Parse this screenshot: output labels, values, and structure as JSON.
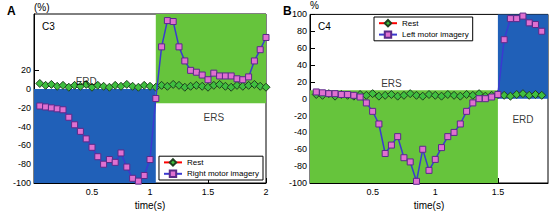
{
  "chart_data": [
    {
      "type": "line",
      "label": "A",
      "title": "C3",
      "xlabel": "time(s)",
      "ylabel": "(%)",
      "x": [
        0.05,
        0.1,
        0.15,
        0.2,
        0.25,
        0.3,
        0.35,
        0.4,
        0.45,
        0.5,
        0.55,
        0.6,
        0.65,
        0.7,
        0.75,
        0.8,
        0.85,
        0.9,
        0.95,
        1.0,
        1.05,
        1.1,
        1.15,
        1.2,
        1.25,
        1.3,
        1.35,
        1.4,
        1.45,
        1.5,
        1.55,
        1.6,
        1.65,
        1.7,
        1.75,
        1.8,
        1.85,
        1.9,
        1.95,
        2.0
      ],
      "series": [
        {
          "name": "Rest",
          "color": "#ff0000",
          "marker": "diamond",
          "values": [
            6,
            4,
            5,
            3,
            4,
            2,
            4,
            3,
            5,
            2,
            4,
            3,
            2,
            4,
            3,
            5,
            3,
            2,
            4,
            3,
            2,
            4,
            3,
            5,
            4,
            2,
            3,
            4,
            3,
            2,
            4,
            5,
            3,
            2,
            4,
            3,
            4,
            5,
            3,
            2
          ]
        },
        {
          "name": "Right motor imagery",
          "color": "#3a3ad0",
          "marker": "square",
          "values": [
            -18,
            -19,
            -20,
            -21,
            -22,
            -30,
            -38,
            -45,
            -53,
            -62,
            -72,
            -80,
            -75,
            -78,
            -68,
            -83,
            -95,
            -98,
            -92,
            -75,
            -10,
            45,
            73,
            72,
            45,
            30,
            20,
            18,
            15,
            10,
            17,
            14,
            14,
            14,
            11,
            10,
            13,
            30,
            42,
            55
          ]
        }
      ],
      "xlim": [
        0,
        2
      ],
      "xticks": [
        0.5,
        1,
        1.5,
        2
      ],
      "ylim": [
        -100,
        80
      ],
      "yticks": [
        -100,
        -80,
        -60,
        -40,
        -20,
        0,
        20
      ],
      "grid": false,
      "legend": "lower right",
      "regions": [
        {
          "x": [
            0,
            1.05
          ],
          "y": [
            -100,
            0
          ],
          "color": "#2060b8"
        },
        {
          "x": [
            1.05,
            2
          ],
          "y": [
            -15,
            80
          ],
          "color": "#66c43c"
        }
      ],
      "annotations": [
        {
          "text": "ERD",
          "x": 0.45,
          "y": 8
        },
        {
          "text": "ERS",
          "x": 1.55,
          "y": -30
        }
      ]
    },
    {
      "type": "line",
      "label": "B",
      "title": "C4",
      "xlabel": "time(s)",
      "ylabel": "%",
      "x": [
        0.05,
        0.1,
        0.15,
        0.2,
        0.25,
        0.3,
        0.35,
        0.4,
        0.45,
        0.5,
        0.55,
        0.6,
        0.65,
        0.7,
        0.75,
        0.8,
        0.85,
        0.9,
        0.95,
        1.0,
        1.05,
        1.1,
        1.15,
        1.2,
        1.25,
        1.3,
        1.35,
        1.4,
        1.45,
        1.5,
        1.55,
        1.6,
        1.65,
        1.7,
        1.75,
        1.8,
        1.85
      ],
      "series": [
        {
          "name": "Rest",
          "color": "#ff0000",
          "marker": "diamond",
          "values": [
            5,
            4,
            6,
            3,
            5,
            4,
            3,
            5,
            4,
            6,
            3,
            4,
            5,
            3,
            4,
            6,
            4,
            3,
            5,
            4,
            3,
            5,
            4,
            3,
            5,
            4,
            6,
            3,
            4,
            5,
            4,
            3,
            5,
            6,
            4,
            5,
            4
          ]
        },
        {
          "name": "Left motor imagery",
          "color": "#3a3ad0",
          "marker": "square",
          "values": [
            8,
            7,
            6,
            6,
            5,
            5,
            4,
            2,
            -5,
            -15,
            -30,
            -65,
            -55,
            -45,
            -70,
            -75,
            -98,
            -60,
            -85,
            -72,
            -58,
            -45,
            -40,
            -30,
            -15,
            -5,
            0,
            0,
            2,
            5,
            70,
            95,
            95,
            98,
            90,
            88,
            80
          ]
        }
      ],
      "xlim": [
        0,
        1.9
      ],
      "xticks": [
        0.5,
        1,
        1.5
      ],
      "ylim": [
        -100,
        100
      ],
      "yticks": [
        -100,
        -80,
        -60,
        -40,
        -20,
        0,
        20,
        40,
        60,
        80,
        100
      ],
      "grid": false,
      "legend": "upper center",
      "regions": [
        {
          "x": [
            0,
            1.5
          ],
          "y": [
            -100,
            10
          ],
          "color": "#66c43c"
        },
        {
          "x": [
            1.5,
            1.9
          ],
          "y": [
            0,
            100
          ],
          "color": "#2060b8"
        }
      ],
      "annotations": [
        {
          "text": "ERS",
          "x": 0.65,
          "y": 18
        },
        {
          "text": "ERD",
          "x": 1.7,
          "y": -25
        }
      ]
    }
  ]
}
